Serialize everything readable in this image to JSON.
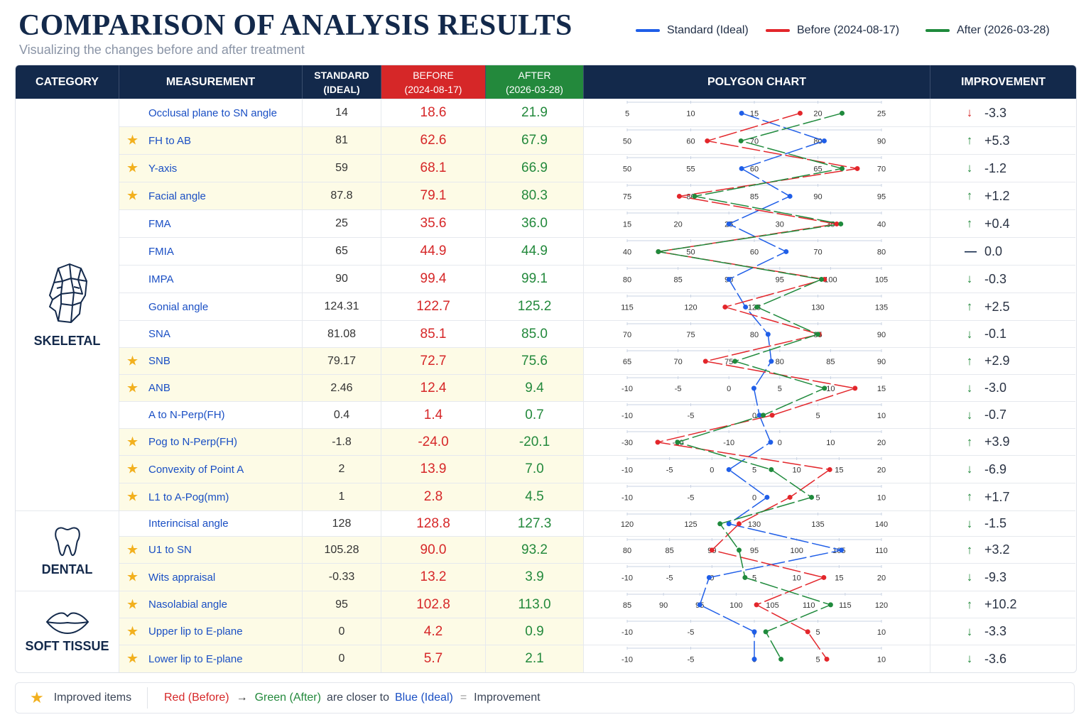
{
  "title": "COMPARISON OF ANALYSIS RESULTS",
  "subtitle": "Visualizing the changes before and after treatment",
  "legend": {
    "standard": "Standard (Ideal)",
    "before": "Before (2024-08-17)",
    "after": "After (2026-03-28)"
  },
  "colors": {
    "standard": "#1f5ee8",
    "before": "#e3262b",
    "after": "#1f8a3c",
    "header": "#13294b",
    "star": "#f2b01e"
  },
  "headers": {
    "category": "CATEGORY",
    "measurement": "MEASUREMENT",
    "standard_l1": "STANDARD",
    "standard_l2": "(IDEAL)",
    "before_l1": "BEFORE",
    "before_l2": "(2024-08-17)",
    "after_l1": "AFTER",
    "after_l2": "(2026-03-28)",
    "chart": "POLYGON CHART",
    "improvement": "IMPROVEMENT"
  },
  "categories": [
    {
      "label": "SKELETAL",
      "icon": "skull-icon"
    },
    {
      "label": "DENTAL",
      "icon": "tooth-icon"
    },
    {
      "label": "SOFT TISSUE",
      "icon": "lips-icon"
    }
  ],
  "footer": {
    "improved": "Improved items",
    "red": "Red (Before)",
    "arrow": "→",
    "green": "Green (After)",
    "middle": "are closer to",
    "blue": "Blue (Ideal)",
    "equals": "=",
    "result": "Improvement"
  },
  "chart_data": {
    "type": "line",
    "title": "POLYGON CHART",
    "series_names": [
      "Standard (Ideal)",
      "Before (2024-08-17)",
      "After (2026-03-28)"
    ],
    "rows": [
      {
        "name": "Occlusal plane to SN angle",
        "standard": "14",
        "before": "18.6",
        "after": "21.9",
        "improvement": "-3.3",
        "direction": "down",
        "starred": false,
        "category": "SKELETAL",
        "axis": {
          "ticks": [
            "5",
            "10",
            "15",
            "20",
            "25"
          ],
          "min": 5,
          "max": 25
        },
        "s": 14,
        "b": 18.6,
        "a": 21.9
      },
      {
        "name": "FH to AB",
        "standard": "81",
        "before": "62.6",
        "after": "67.9",
        "improvement": "+5.3",
        "direction": "up",
        "starred": true,
        "category": "SKELETAL",
        "axis": {
          "ticks": [
            "50",
            "60",
            "70",
            "80",
            "90"
          ],
          "min": 50,
          "max": 90
        },
        "s": 81,
        "b": 62.6,
        "a": 67.9
      },
      {
        "name": "Y-axis",
        "standard": "59",
        "before": "68.1",
        "after": "66.9",
        "improvement": "-1.2",
        "direction": "down",
        "starred": true,
        "category": "SKELETAL",
        "axis": {
          "ticks": [
            "50",
            "55",
            "60",
            "65",
            "70"
          ],
          "min": 50,
          "max": 70
        },
        "s": 59,
        "b": 68.1,
        "a": 66.9
      },
      {
        "name": "Facial angle",
        "standard": "87.8",
        "before": "79.1",
        "after": "80.3",
        "improvement": "+1.2",
        "direction": "up",
        "starred": true,
        "category": "SKELETAL",
        "axis": {
          "ticks": [
            "75",
            "80",
            "85",
            "90",
            "95"
          ],
          "min": 75,
          "max": 95
        },
        "s": 87.8,
        "b": 79.1,
        "a": 80.3
      },
      {
        "name": "FMA",
        "standard": "25",
        "before": "35.6",
        "after": "36.0",
        "improvement": "+0.4",
        "direction": "up",
        "starred": false,
        "category": "SKELETAL",
        "axis": {
          "ticks": [
            "15",
            "20",
            "25",
            "30",
            "35",
            "40"
          ],
          "min": 15,
          "max": 40
        },
        "s": 25,
        "b": 35.6,
        "a": 36.0
      },
      {
        "name": "FMIA",
        "standard": "65",
        "before": "44.9",
        "after": "44.9",
        "improvement": "0.0",
        "direction": "flat",
        "starred": false,
        "category": "SKELETAL",
        "axis": {
          "ticks": [
            "40",
            "50",
            "60",
            "70",
            "80"
          ],
          "min": 40,
          "max": 80
        },
        "s": 65,
        "b": 44.9,
        "a": 44.9
      },
      {
        "name": "IMPA",
        "standard": "90",
        "before": "99.4",
        "after": "99.1",
        "improvement": "-0.3",
        "direction": "down",
        "starred": false,
        "category": "SKELETAL",
        "axis": {
          "ticks": [
            "80",
            "85",
            "90",
            "95",
            "100",
            "105"
          ],
          "min": 80,
          "max": 105
        },
        "s": 90,
        "b": 99.4,
        "a": 99.1
      },
      {
        "name": "Gonial angle",
        "standard": "124.31",
        "before": "122.7",
        "after": "125.2",
        "improvement": "+2.5",
        "direction": "up",
        "starred": false,
        "category": "SKELETAL",
        "axis": {
          "ticks": [
            "115",
            "120",
            "125",
            "130",
            "135"
          ],
          "min": 115,
          "max": 135
        },
        "s": 124.31,
        "b": 122.7,
        "a": 125.2
      },
      {
        "name": "SNA",
        "standard": "81.08",
        "before": "85.1",
        "after": "85.0",
        "improvement": "-0.1",
        "direction": "down",
        "starred": false,
        "category": "SKELETAL",
        "axis": {
          "ticks": [
            "70",
            "75",
            "80",
            "85",
            "90"
          ],
          "min": 70,
          "max": 90
        },
        "s": 81.08,
        "b": 85.1,
        "a": 85.0
      },
      {
        "name": "SNB",
        "standard": "79.17",
        "before": "72.7",
        "after": "75.6",
        "improvement": "+2.9",
        "direction": "up",
        "starred": true,
        "category": "SKELETAL",
        "axis": {
          "ticks": [
            "65",
            "70",
            "75",
            "80",
            "85",
            "90"
          ],
          "min": 65,
          "max": 90
        },
        "s": 79.17,
        "b": 72.7,
        "a": 75.6
      },
      {
        "name": "ANB",
        "standard": "2.46",
        "before": "12.4",
        "after": "9.4",
        "improvement": "-3.0",
        "direction": "down",
        "starred": true,
        "category": "SKELETAL",
        "axis": {
          "ticks": [
            "-10",
            "-5",
            "0",
            "5",
            "10",
            "15"
          ],
          "min": -10,
          "max": 15
        },
        "s": 2.46,
        "b": 12.4,
        "a": 9.4
      },
      {
        "name": "A to N-Perp(FH)",
        "standard": "0.4",
        "before": "1.4",
        "after": "0.7",
        "improvement": "-0.7",
        "direction": "down",
        "starred": false,
        "category": "SKELETAL",
        "axis": {
          "ticks": [
            "-10",
            "-5",
            "0",
            "5",
            "10"
          ],
          "min": -10,
          "max": 10
        },
        "s": 0.4,
        "b": 1.4,
        "a": 0.7
      },
      {
        "name": "Pog to N-Perp(FH)",
        "standard": "-1.8",
        "before": "-24.0",
        "after": "-20.1",
        "improvement": "+3.9",
        "direction": "up",
        "starred": true,
        "category": "SKELETAL",
        "axis": {
          "ticks": [
            "-30",
            "-20",
            "-10",
            "0",
            "10",
            "20"
          ],
          "min": -30,
          "max": 20
        },
        "s": -1.8,
        "b": -24.0,
        "a": -20.1
      },
      {
        "name": "Convexity of Point A",
        "standard": "2",
        "before": "13.9",
        "after": "7.0",
        "improvement": "-6.9",
        "direction": "down",
        "starred": true,
        "category": "SKELETAL",
        "axis": {
          "ticks": [
            "-10",
            "-5",
            "0",
            "5",
            "10",
            "15",
            "20"
          ],
          "min": -10,
          "max": 20
        },
        "s": 2,
        "b": 13.9,
        "a": 7.0
      },
      {
        "name": "L1 to A-Pog(mm)",
        "standard": "1",
        "before": "2.8",
        "after": "4.5",
        "improvement": "+1.7",
        "direction": "up",
        "starred": true,
        "category": "SKELETAL",
        "axis": {
          "ticks": [
            "-10",
            "-5",
            "0",
            "5",
            "10"
          ],
          "min": -10,
          "max": 10
        },
        "s": 1,
        "b": 2.8,
        "a": 4.5
      },
      {
        "name": "Interincisal angle",
        "standard": "128",
        "before": "128.8",
        "after": "127.3",
        "improvement": "-1.5",
        "direction": "down",
        "starred": false,
        "category": "DENTAL",
        "axis": {
          "ticks": [
            "120",
            "125",
            "130",
            "135",
            "140"
          ],
          "min": 120,
          "max": 140
        },
        "s": 128,
        "b": 128.8,
        "a": 127.3
      },
      {
        "name": "U1 to SN",
        "standard": "105.28",
        "before": "90.0",
        "after": "93.2",
        "improvement": "+3.2",
        "direction": "up",
        "starred": true,
        "category": "DENTAL",
        "axis": {
          "ticks": [
            "80",
            "85",
            "90",
            "95",
            "100",
            "105",
            "110"
          ],
          "min": 80,
          "max": 110
        },
        "s": 105.28,
        "b": 90.0,
        "a": 93.2
      },
      {
        "name": "Wits appraisal",
        "standard": "-0.33",
        "before": "13.2",
        "after": "3.9",
        "improvement": "-9.3",
        "direction": "down",
        "starred": true,
        "category": "DENTAL",
        "axis": {
          "ticks": [
            "-10",
            "-5",
            "0",
            "5",
            "10",
            "15",
            "20"
          ],
          "min": -10,
          "max": 20
        },
        "s": -0.33,
        "b": 13.2,
        "a": 3.9
      },
      {
        "name": "Nasolabial angle",
        "standard": "95",
        "before": "102.8",
        "after": "113.0",
        "improvement": "+10.2",
        "direction": "up",
        "starred": true,
        "category": "SOFT TISSUE",
        "axis": {
          "ticks": [
            "85",
            "90",
            "95",
            "100",
            "105",
            "110",
            "115",
            "120"
          ],
          "min": 85,
          "max": 120
        },
        "s": 95,
        "b": 102.8,
        "a": 113.0
      },
      {
        "name": "Upper lip to E-plane",
        "standard": "0",
        "before": "4.2",
        "after": "0.9",
        "improvement": "-3.3",
        "direction": "down",
        "starred": true,
        "category": "SOFT TISSUE",
        "axis": {
          "ticks": [
            "-10",
            "-5",
            "0",
            "5",
            "10"
          ],
          "min": -10,
          "max": 10
        },
        "s": 0,
        "b": 4.2,
        "a": 0.9
      },
      {
        "name": "Lower lip to E-plane",
        "standard": "0",
        "before": "5.7",
        "after": "2.1",
        "improvement": "-3.6",
        "direction": "down",
        "starred": true,
        "category": "SOFT TISSUE",
        "axis": {
          "ticks": [
            "-10",
            "-5",
            "0",
            "5",
            "10"
          ],
          "min": -10,
          "max": 10
        },
        "s": 0,
        "b": 5.7,
        "a": 2.1
      }
    ]
  }
}
